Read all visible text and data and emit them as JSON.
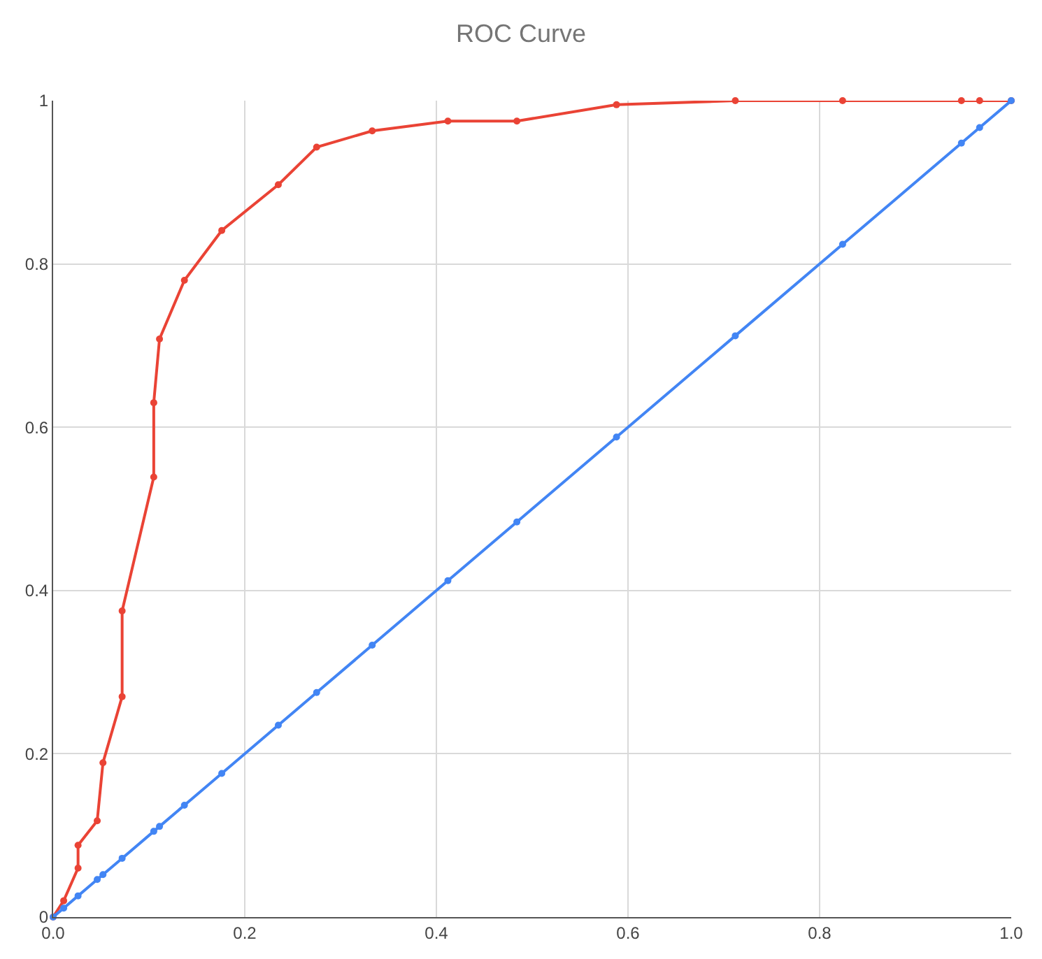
{
  "chart_data": {
    "type": "line",
    "title": "ROC Curve",
    "series": [
      {
        "color": "#ea4335",
        "x": [
          0,
          0.011,
          0.026,
          0.026,
          0.046,
          0.052,
          0.072,
          0.072,
          0.105,
          0.105,
          0.111,
          0.137,
          0.176,
          0.235,
          0.275,
          0.333,
          0.412,
          0.484,
          0.588,
          0.712,
          0.824,
          0.948,
          0.967,
          1
        ],
        "values": [
          0,
          0.02,
          0.06,
          0.088,
          0.118,
          0.189,
          0.27,
          0.375,
          0.539,
          0.63,
          0.708,
          0.78,
          0.841,
          0.897,
          0.943,
          0.963,
          0.975,
          0.975,
          0.995,
          1,
          1,
          1,
          1,
          1
        ]
      },
      {
        "color": "#4285f4",
        "x": [
          0,
          0.011,
          0.026,
          0.046,
          0.052,
          0.072,
          0.105,
          0.111,
          0.137,
          0.176,
          0.235,
          0.275,
          0.333,
          0.412,
          0.484,
          0.588,
          0.712,
          0.824,
          0.948,
          0.967,
          1
        ],
        "values": [
          0,
          0.011,
          0.026,
          0.046,
          0.052,
          0.072,
          0.105,
          0.111,
          0.137,
          0.176,
          0.235,
          0.275,
          0.333,
          0.412,
          0.484,
          0.588,
          0.712,
          0.824,
          0.948,
          0.967,
          1
        ]
      }
    ],
    "xlim": [
      0,
      1
    ],
    "ylim": [
      0,
      1
    ],
    "xticks": [
      {
        "value": 0,
        "label": "0.0"
      },
      0.2,
      0.4,
      0.6,
      0.8,
      {
        "value": 1,
        "label": "1.0"
      }
    ],
    "yticks": [
      0,
      0.2,
      0.4,
      0.6,
      0.8,
      1
    ],
    "grid": true,
    "marker": "circle",
    "line_style": "solid"
  }
}
